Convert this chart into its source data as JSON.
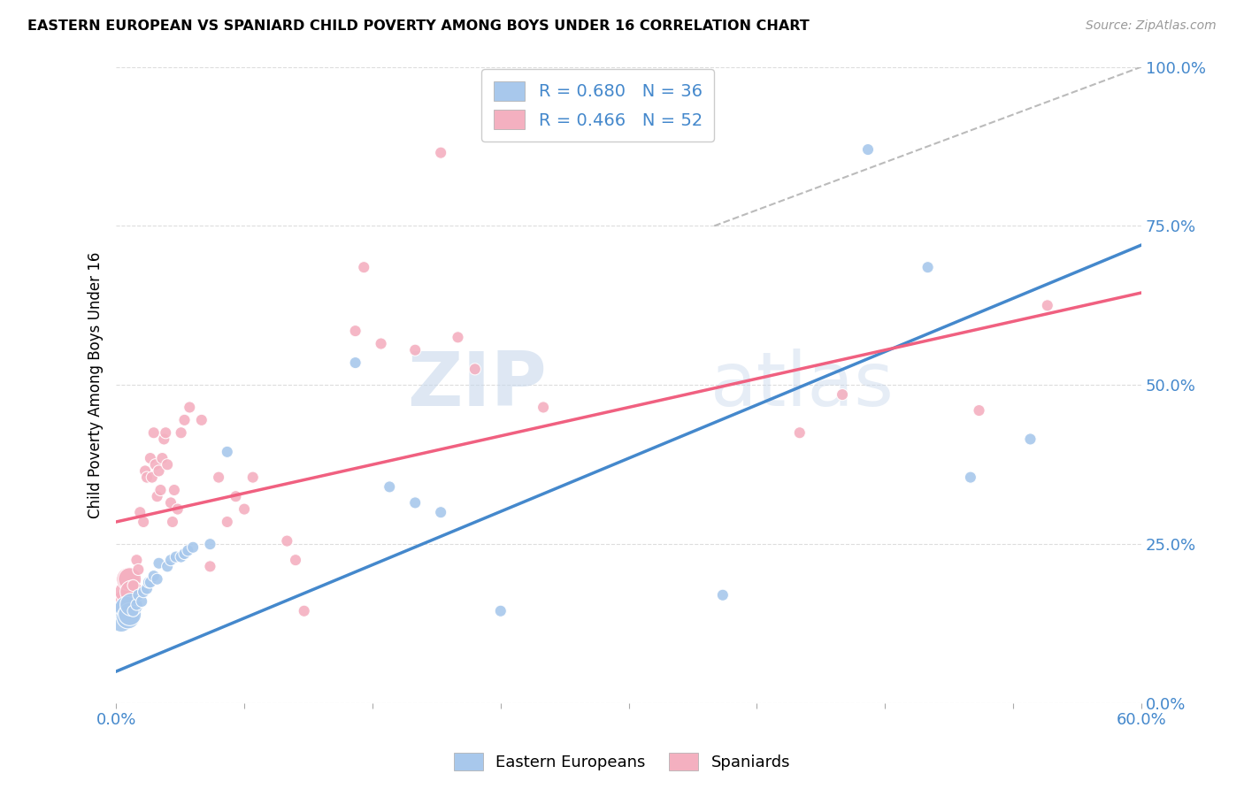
{
  "title": "EASTERN EUROPEAN VS SPANIARD CHILD POVERTY AMONG BOYS UNDER 16 CORRELATION CHART",
  "source": "Source: ZipAtlas.com",
  "ylabel": "Child Poverty Among Boys Under 16",
  "legend_blue": {
    "R": 0.68,
    "N": 36,
    "label": "Eastern Europeans"
  },
  "legend_pink": {
    "R": 0.466,
    "N": 52,
    "label": "Spaniards"
  },
  "watermark_zip": "ZIP",
  "watermark_atlas": "atlas",
  "blue_color": "#a8c8ec",
  "pink_color": "#f4b0c0",
  "blue_line_color": "#4488cc",
  "pink_line_color": "#f06080",
  "dashed_line_color": "#bbbbbb",
  "right_tick_color": "#4488cc",
  "xlim": [
    0.0,
    0.6
  ],
  "ylim": [
    0.0,
    1.0
  ],
  "blue_scatter": [
    [
      0.003,
      0.13
    ],
    [
      0.005,
      0.145
    ],
    [
      0.006,
      0.15
    ],
    [
      0.007,
      0.135
    ],
    [
      0.008,
      0.14
    ],
    [
      0.009,
      0.155
    ],
    [
      0.01,
      0.145
    ],
    [
      0.012,
      0.155
    ],
    [
      0.013,
      0.17
    ],
    [
      0.015,
      0.16
    ],
    [
      0.016,
      0.175
    ],
    [
      0.018,
      0.18
    ],
    [
      0.019,
      0.19
    ],
    [
      0.02,
      0.19
    ],
    [
      0.022,
      0.2
    ],
    [
      0.024,
      0.195
    ],
    [
      0.025,
      0.22
    ],
    [
      0.03,
      0.215
    ],
    [
      0.032,
      0.225
    ],
    [
      0.035,
      0.23
    ],
    [
      0.038,
      0.23
    ],
    [
      0.04,
      0.235
    ],
    [
      0.042,
      0.24
    ],
    [
      0.045,
      0.245
    ],
    [
      0.055,
      0.25
    ],
    [
      0.065,
      0.395
    ],
    [
      0.14,
      0.535
    ],
    [
      0.16,
      0.34
    ],
    [
      0.175,
      0.315
    ],
    [
      0.19,
      0.3
    ],
    [
      0.225,
      0.145
    ],
    [
      0.355,
      0.17
    ],
    [
      0.44,
      0.87
    ],
    [
      0.475,
      0.685
    ],
    [
      0.5,
      0.355
    ],
    [
      0.535,
      0.415
    ]
  ],
  "pink_scatter": [
    [
      0.005,
      0.16
    ],
    [
      0.006,
      0.175
    ],
    [
      0.007,
      0.195
    ],
    [
      0.008,
      0.195
    ],
    [
      0.009,
      0.175
    ],
    [
      0.01,
      0.185
    ],
    [
      0.012,
      0.225
    ],
    [
      0.013,
      0.21
    ],
    [
      0.014,
      0.3
    ],
    [
      0.016,
      0.285
    ],
    [
      0.017,
      0.365
    ],
    [
      0.018,
      0.355
    ],
    [
      0.02,
      0.385
    ],
    [
      0.021,
      0.355
    ],
    [
      0.022,
      0.425
    ],
    [
      0.023,
      0.375
    ],
    [
      0.024,
      0.325
    ],
    [
      0.025,
      0.365
    ],
    [
      0.026,
      0.335
    ],
    [
      0.027,
      0.385
    ],
    [
      0.028,
      0.415
    ],
    [
      0.029,
      0.425
    ],
    [
      0.03,
      0.375
    ],
    [
      0.032,
      0.315
    ],
    [
      0.033,
      0.285
    ],
    [
      0.034,
      0.335
    ],
    [
      0.036,
      0.305
    ],
    [
      0.038,
      0.425
    ],
    [
      0.04,
      0.445
    ],
    [
      0.043,
      0.465
    ],
    [
      0.05,
      0.445
    ],
    [
      0.055,
      0.215
    ],
    [
      0.06,
      0.355
    ],
    [
      0.065,
      0.285
    ],
    [
      0.07,
      0.325
    ],
    [
      0.075,
      0.305
    ],
    [
      0.08,
      0.355
    ],
    [
      0.1,
      0.255
    ],
    [
      0.105,
      0.225
    ],
    [
      0.11,
      0.145
    ],
    [
      0.14,
      0.585
    ],
    [
      0.145,
      0.685
    ],
    [
      0.155,
      0.565
    ],
    [
      0.175,
      0.555
    ],
    [
      0.19,
      0.865
    ],
    [
      0.2,
      0.575
    ],
    [
      0.21,
      0.525
    ],
    [
      0.25,
      0.465
    ],
    [
      0.4,
      0.425
    ],
    [
      0.425,
      0.485
    ],
    [
      0.505,
      0.46
    ],
    [
      0.545,
      0.625
    ]
  ],
  "blue_line_pts": [
    [
      0.0,
      0.05
    ],
    [
      0.6,
      0.72
    ]
  ],
  "pink_line_pts": [
    [
      0.0,
      0.285
    ],
    [
      0.6,
      0.645
    ]
  ],
  "dashed_line_pts": [
    [
      0.35,
      0.75
    ],
    [
      0.6,
      1.0
    ]
  ],
  "grid_color": "#dddddd",
  "yticks": [
    0.0,
    0.25,
    0.5,
    0.75,
    1.0
  ],
  "ytick_labels": [
    "0.0%",
    "25.0%",
    "50.0%",
    "75.0%",
    "100.0%"
  ]
}
